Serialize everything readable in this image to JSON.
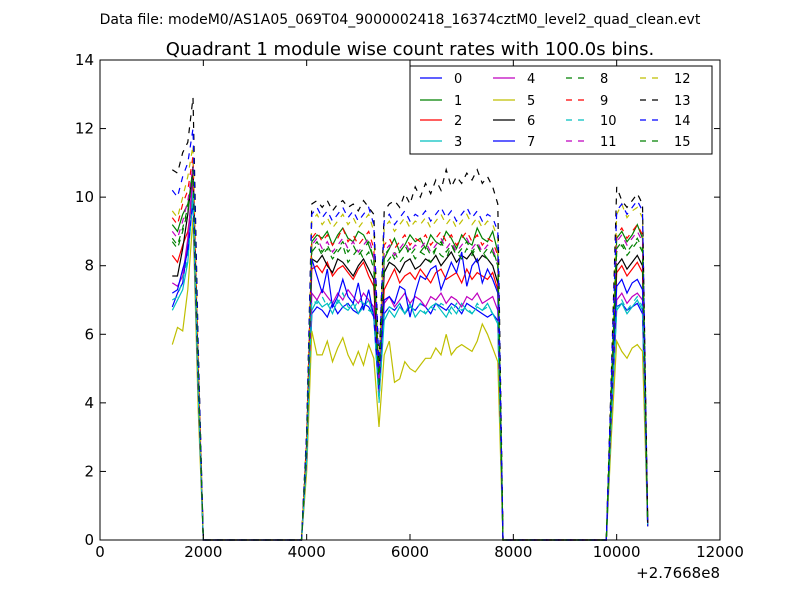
{
  "chart_data": {
    "type": "line",
    "suptitle": "Data file: modeM0/AS1A05_069T04_9000002418_16374cztM0_level2_quad_clean.evt",
    "title": "Quadrant 1 module wise count rates with 100.0s bins.",
    "xlabel": "",
    "ylabel": "",
    "x_offset_label": "+2.7668e8",
    "xlim": [
      0,
      12000
    ],
    "ylim": [
      0,
      14
    ],
    "xticks": [
      0,
      2000,
      4000,
      6000,
      8000,
      10000,
      12000
    ],
    "yticks": [
      0,
      2,
      4,
      6,
      8,
      10,
      12,
      14
    ],
    "grid": false,
    "legend": {
      "location": "upper right",
      "columns": 4
    },
    "x": [
      1400,
      1500,
      1600,
      1700,
      1800,
      1900,
      2000,
      2100,
      2500,
      3000,
      3500,
      3900,
      4000,
      4100,
      4200,
      4300,
      4400,
      4500,
      4600,
      4700,
      4800,
      4900,
      5000,
      5100,
      5200,
      5300,
      5400,
      5500,
      5600,
      5700,
      5800,
      5900,
      6000,
      6100,
      6200,
      6300,
      6400,
      6500,
      6600,
      6700,
      6800,
      6900,
      7000,
      7100,
      7200,
      7300,
      7400,
      7500,
      7600,
      7700,
      7800,
      7900,
      8500,
      9000,
      9500,
      9800,
      9900,
      10000,
      10100,
      10200,
      10300,
      10400,
      10500,
      10600
    ],
    "series": [
      {
        "name": "0",
        "color": "#0000ff",
        "dash": "solid",
        "values": [
          6.8,
          7.2,
          7.5,
          8.6,
          10.8,
          4.5,
          0,
          0,
          0,
          0,
          0,
          0,
          2.3,
          6.6,
          6.8,
          6.7,
          6.5,
          6.9,
          6.6,
          6.8,
          6.9,
          6.7,
          6.6,
          6.9,
          6.8,
          6.5,
          4.2,
          6.6,
          6.8,
          6.7,
          6.9,
          6.6,
          6.8,
          6.7,
          6.9,
          6.8,
          6.6,
          6.9,
          6.8,
          6.7,
          6.9,
          6.8,
          6.6,
          6.9,
          6.8,
          6.7,
          6.6,
          6.5,
          6.6,
          6.4,
          0,
          0,
          0,
          0,
          0,
          0,
          3.6,
          6.8,
          6.9,
          6.7,
          6.8,
          6.9,
          6.6,
          0.4
        ]
      },
      {
        "name": "1",
        "color": "#008000",
        "dash": "solid",
        "values": [
          9.2,
          9.0,
          9.5,
          9.8,
          10.5,
          5.0,
          0,
          0,
          0,
          0,
          0,
          0,
          2.8,
          8.7,
          8.9,
          8.8,
          9.0,
          8.6,
          8.9,
          9.1,
          8.8,
          8.7,
          9.0,
          8.9,
          8.6,
          8.2,
          4.6,
          8.2,
          8.5,
          8.8,
          8.4,
          8.6,
          8.9,
          8.7,
          8.8,
          8.5,
          8.9,
          8.7,
          8.6,
          9.0,
          8.8,
          8.5,
          8.9,
          8.7,
          8.6,
          9.1,
          8.8,
          8.7,
          9.0,
          8.4,
          0,
          0,
          0,
          0,
          0,
          0,
          4.5,
          8.8,
          9.0,
          8.7,
          8.9,
          9.2,
          8.8,
          0.5
        ]
      },
      {
        "name": "2",
        "color": "#ff0000",
        "dash": "solid",
        "values": [
          8.3,
          8.1,
          8.6,
          9.0,
          10.1,
          4.8,
          0,
          0,
          0,
          0,
          0,
          0,
          2.6,
          7.9,
          8.0,
          7.8,
          8.1,
          7.7,
          7.9,
          8.0,
          7.8,
          7.6,
          7.9,
          8.1,
          7.7,
          7.4,
          4.4,
          7.3,
          7.6,
          7.9,
          7.5,
          7.7,
          7.8,
          7.6,
          7.9,
          7.7,
          7.5,
          7.8,
          7.9,
          7.6,
          7.7,
          7.8,
          7.5,
          7.9,
          7.6,
          7.8,
          7.7,
          7.6,
          7.8,
          7.3,
          0,
          0,
          0,
          0,
          0,
          0,
          4.0,
          7.8,
          8.0,
          7.7,
          7.9,
          8.1,
          7.8,
          0.5
        ]
      },
      {
        "name": "3",
        "color": "#00bfbf",
        "dash": "solid",
        "values": [
          6.7,
          7.0,
          7.3,
          8.1,
          10.2,
          4.2,
          0,
          0,
          0,
          0,
          0,
          0,
          2.2,
          6.7,
          7.0,
          6.8,
          6.9,
          6.6,
          7.0,
          6.8,
          6.7,
          6.9,
          6.6,
          6.8,
          7.0,
          6.5,
          4.1,
          6.4,
          6.7,
          6.5,
          6.8,
          6.6,
          6.9,
          6.5,
          6.7,
          6.6,
          6.8,
          6.9,
          6.7,
          6.5,
          6.8,
          6.6,
          6.9,
          6.7,
          6.6,
          6.8,
          6.7,
          6.9,
          6.6,
          6.3,
          0,
          0,
          0,
          0,
          0,
          0,
          3.5,
          6.7,
          6.9,
          6.6,
          6.8,
          7.0,
          6.7,
          0.4
        ]
      },
      {
        "name": "4",
        "color": "#bf00bf",
        "dash": "solid",
        "values": [
          7.5,
          7.4,
          7.7,
          8.8,
          10.6,
          4.6,
          0,
          0,
          0,
          0,
          0,
          0,
          2.5,
          7.2,
          7.0,
          7.3,
          7.1,
          6.9,
          7.2,
          7.0,
          7.3,
          7.1,
          6.9,
          7.2,
          7.0,
          6.8,
          4.3,
          6.9,
          7.1,
          6.8,
          7.0,
          7.2,
          6.9,
          7.1,
          7.0,
          6.8,
          7.1,
          7.0,
          7.2,
          6.9,
          7.1,
          7.0,
          6.8,
          7.1,
          7.0,
          7.2,
          6.9,
          7.0,
          7.1,
          6.7,
          0,
          0,
          0,
          0,
          0,
          0,
          3.7,
          7.0,
          7.2,
          6.9,
          7.1,
          7.2,
          7.0,
          0.4
        ]
      },
      {
        "name": "5",
        "color": "#bfbf00",
        "dash": "solid",
        "values": [
          5.7,
          6.2,
          6.1,
          7.3,
          9.4,
          3.8,
          0,
          0,
          0,
          0,
          0,
          0,
          2.0,
          6.1,
          5.4,
          5.4,
          5.8,
          5.2,
          5.6,
          5.9,
          5.4,
          5.1,
          5.5,
          5.1,
          5.7,
          5.3,
          3.3,
          5.4,
          5.8,
          4.6,
          4.7,
          5.2,
          5.0,
          4.9,
          5.1,
          5.3,
          5.3,
          5.6,
          5.4,
          6.0,
          5.4,
          5.6,
          5.7,
          5.6,
          5.5,
          5.8,
          6.3,
          6.0,
          5.6,
          5.2,
          0,
          0,
          0,
          0,
          0,
          0,
          3.1,
          5.8,
          5.5,
          5.3,
          5.6,
          5.7,
          5.5,
          0.4
        ]
      },
      {
        "name": "6",
        "color": "#000000",
        "dash": "solid",
        "values": [
          7.7,
          7.7,
          8.5,
          9.5,
          10.9,
          5.0,
          0,
          0,
          0,
          0,
          0,
          0,
          2.8,
          8.2,
          8.1,
          8.3,
          8.0,
          7.8,
          8.2,
          8.1,
          7.9,
          7.7,
          8.0,
          8.2,
          7.9,
          7.6,
          4.5,
          7.8,
          8.1,
          8.0,
          7.8,
          8.1,
          8.2,
          7.9,
          8.0,
          8.2,
          8.1,
          8.3,
          8.0,
          8.2,
          8.4,
          8.1,
          8.3,
          8.2,
          8.4,
          8.1,
          8.3,
          8.2,
          8.0,
          7.5,
          0,
          0,
          0,
          0,
          0,
          0,
          4.2,
          8.0,
          8.2,
          7.9,
          8.1,
          8.3,
          8.0,
          0.5
        ]
      },
      {
        "name": "7",
        "color": "#0000ff",
        "dash": "solid",
        "values": [
          7.2,
          7.3,
          7.9,
          8.4,
          9.9,
          4.4,
          0,
          0,
          0,
          0,
          0,
          0,
          2.4,
          8.2,
          7.7,
          7.2,
          7.9,
          6.8,
          7.1,
          7.6,
          7.1,
          6.9,
          7.5,
          6.7,
          7.3,
          6.5,
          4.4,
          7.0,
          7.1,
          6.9,
          7.4,
          7.3,
          6.5,
          7.2,
          7.7,
          7.6,
          7.9,
          8.0,
          7.3,
          7.7,
          8.1,
          7.8,
          8.4,
          7.4,
          8.0,
          8.2,
          7.5,
          7.9,
          7.6,
          7.2,
          0,
          0,
          0,
          0,
          0,
          0,
          3.8,
          7.4,
          7.6,
          7.2,
          7.5,
          7.6,
          7.3,
          0.4
        ]
      },
      {
        "name": "8",
        "color": "#008000",
        "dash": "dashed",
        "values": [
          8.7,
          8.5,
          9.0,
          9.6,
          10.7,
          4.9,
          0,
          0,
          0,
          0,
          0,
          0,
          2.7,
          8.4,
          8.6,
          8.3,
          8.5,
          8.2,
          8.4,
          8.6,
          8.1,
          8.3,
          8.5,
          8.2,
          8.4,
          7.9,
          4.5,
          8.0,
          8.2,
          8.4,
          8.1,
          8.3,
          8.5,
          8.2,
          8.4,
          8.3,
          8.1,
          8.5,
          8.3,
          8.2,
          8.6,
          8.4,
          8.2,
          8.5,
          8.3,
          8.6,
          8.4,
          8.2,
          8.5,
          8.0,
          0,
          0,
          0,
          0,
          0,
          0,
          4.3,
          8.4,
          8.6,
          8.3,
          8.5,
          8.7,
          8.4,
          0.5
        ]
      },
      {
        "name": "9",
        "color": "#ff0000",
        "dash": "dashed",
        "values": [
          9.4,
          9.2,
          9.8,
          10.2,
          11.2,
          5.2,
          0,
          0,
          0,
          0,
          0,
          0,
          3.0,
          8.8,
          9.0,
          8.7,
          8.9,
          8.6,
          8.8,
          9.1,
          8.7,
          8.9,
          8.6,
          8.8,
          9.0,
          8.5,
          4.8,
          8.6,
          8.8,
          8.5,
          8.7,
          8.9,
          8.6,
          8.8,
          8.7,
          8.9,
          8.6,
          8.8,
          9.0,
          8.7,
          8.9,
          8.6,
          8.8,
          9.0,
          8.7,
          8.9,
          8.6,
          8.8,
          8.7,
          8.3,
          0,
          0,
          0,
          0,
          0,
          0,
          4.6,
          8.9,
          9.1,
          8.8,
          9.0,
          9.2,
          8.9,
          0.5
        ]
      },
      {
        "name": "10",
        "color": "#00bfbf",
        "dash": "dashed",
        "values": [
          7.0,
          7.1,
          7.6,
          8.2,
          10.0,
          4.3,
          0,
          0,
          0,
          0,
          0,
          0,
          2.3,
          7.0,
          6.9,
          7.1,
          6.8,
          7.0,
          6.9,
          7.2,
          6.8,
          6.7,
          7.0,
          6.9,
          6.7,
          6.6,
          4.0,
          6.6,
          6.8,
          6.7,
          6.9,
          6.6,
          6.8,
          6.7,
          6.9,
          6.6,
          6.8,
          6.7,
          6.9,
          6.8,
          6.6,
          6.9,
          6.7,
          6.8,
          6.6,
          6.9,
          6.7,
          6.8,
          6.6,
          6.4,
          0,
          0,
          0,
          0,
          0,
          0,
          3.6,
          6.8,
          7.0,
          6.7,
          6.9,
          7.1,
          6.8,
          0.4
        ]
      },
      {
        "name": "11",
        "color": "#bf00bf",
        "dash": "dashed",
        "values": [
          9.0,
          8.8,
          9.3,
          9.9,
          10.9,
          5.1,
          0,
          0,
          0,
          0,
          0,
          0,
          2.9,
          8.6,
          8.8,
          8.5,
          8.7,
          8.4,
          8.6,
          8.8,
          8.5,
          8.7,
          8.4,
          8.6,
          8.8,
          8.3,
          4.6,
          8.4,
          8.6,
          8.3,
          8.5,
          8.7,
          8.4,
          8.6,
          8.5,
          8.7,
          8.4,
          8.6,
          8.8,
          8.5,
          8.7,
          8.4,
          8.6,
          8.8,
          8.5,
          8.7,
          8.4,
          8.6,
          8.5,
          8.1,
          0,
          0,
          0,
          0,
          0,
          0,
          4.4,
          8.7,
          8.9,
          8.6,
          8.8,
          9.0,
          8.7,
          0.5
        ]
      },
      {
        "name": "12",
        "color": "#bfbf00",
        "dash": "dashed",
        "values": [
          9.6,
          9.4,
          10.0,
          10.6,
          11.5,
          5.3,
          0,
          0,
          0,
          0,
          0,
          0,
          3.1,
          9.3,
          9.5,
          9.2,
          9.4,
          9.1,
          9.3,
          9.5,
          9.2,
          9.4,
          9.1,
          9.3,
          9.5,
          9.0,
          4.9,
          9.1,
          9.3,
          9.0,
          9.2,
          9.4,
          9.1,
          9.3,
          9.2,
          9.4,
          9.1,
          9.3,
          9.5,
          9.2,
          9.4,
          9.1,
          9.3,
          9.5,
          9.2,
          9.4,
          9.1,
          9.3,
          9.2,
          8.8,
          0,
          0,
          0,
          0,
          0,
          0,
          4.8,
          9.5,
          9.8,
          9.4,
          9.6,
          9.7,
          9.4,
          0.5
        ]
      },
      {
        "name": "13",
        "color": "#000000",
        "dash": "dashed",
        "values": [
          10.8,
          10.7,
          11.3,
          11.6,
          12.9,
          5.7,
          0,
          0,
          0,
          0,
          0,
          0,
          3.2,
          9.8,
          9.9,
          9.7,
          9.9,
          9.6,
          9.8,
          9.9,
          9.7,
          9.8,
          9.6,
          9.9,
          9.7,
          9.5,
          5.0,
          9.6,
          9.8,
          9.9,
          9.7,
          10.1,
          9.8,
          10.3,
          10.0,
          10.4,
          10.1,
          10.5,
          10.2,
          10.8,
          10.3,
          10.6,
          10.4,
          10.7,
          10.5,
          10.8,
          10.4,
          10.6,
          10.3,
          9.8,
          0,
          0,
          0,
          0,
          0,
          0,
          5.0,
          10.3,
          9.9,
          9.7,
          9.9,
          10.1,
          9.8,
          0.5
        ]
      },
      {
        "name": "14",
        "color": "#0000ff",
        "dash": "dashed",
        "values": [
          10.2,
          10.0,
          10.6,
          11.0,
          12.0,
          5.5,
          0,
          0,
          0,
          0,
          0,
          0,
          3.1,
          9.5,
          9.7,
          9.4,
          9.6,
          9.3,
          9.5,
          9.7,
          9.4,
          9.6,
          9.3,
          9.5,
          9.7,
          9.2,
          4.9,
          9.3,
          9.5,
          9.2,
          9.4,
          9.6,
          9.3,
          9.5,
          9.4,
          9.6,
          9.3,
          9.5,
          9.7,
          9.4,
          9.6,
          9.3,
          9.5,
          9.7,
          9.4,
          9.6,
          9.3,
          9.5,
          9.4,
          9.0,
          0,
          0,
          0,
          0,
          0,
          0,
          4.8,
          9.6,
          9.8,
          9.5,
          9.7,
          9.9,
          9.6,
          0.5
        ]
      },
      {
        "name": "15",
        "color": "#008000",
        "dash": "dashed",
        "values": [
          8.8,
          8.6,
          9.1,
          9.7,
          10.8,
          5.0,
          0,
          0,
          0,
          0,
          0,
          0,
          2.8,
          8.5,
          8.7,
          8.4,
          8.6,
          8.3,
          8.5,
          8.7,
          8.4,
          8.6,
          8.3,
          8.5,
          8.7,
          8.2,
          4.6,
          8.3,
          8.5,
          8.2,
          8.4,
          8.6,
          8.3,
          8.5,
          8.4,
          8.6,
          8.3,
          8.5,
          8.7,
          8.4,
          8.6,
          8.3,
          8.5,
          8.7,
          8.4,
          8.6,
          8.3,
          8.5,
          8.4,
          8.0,
          0,
          0,
          0,
          0,
          0,
          0,
          4.4,
          8.5,
          8.7,
          8.4,
          8.6,
          8.8,
          8.5,
          0.5
        ]
      }
    ]
  }
}
